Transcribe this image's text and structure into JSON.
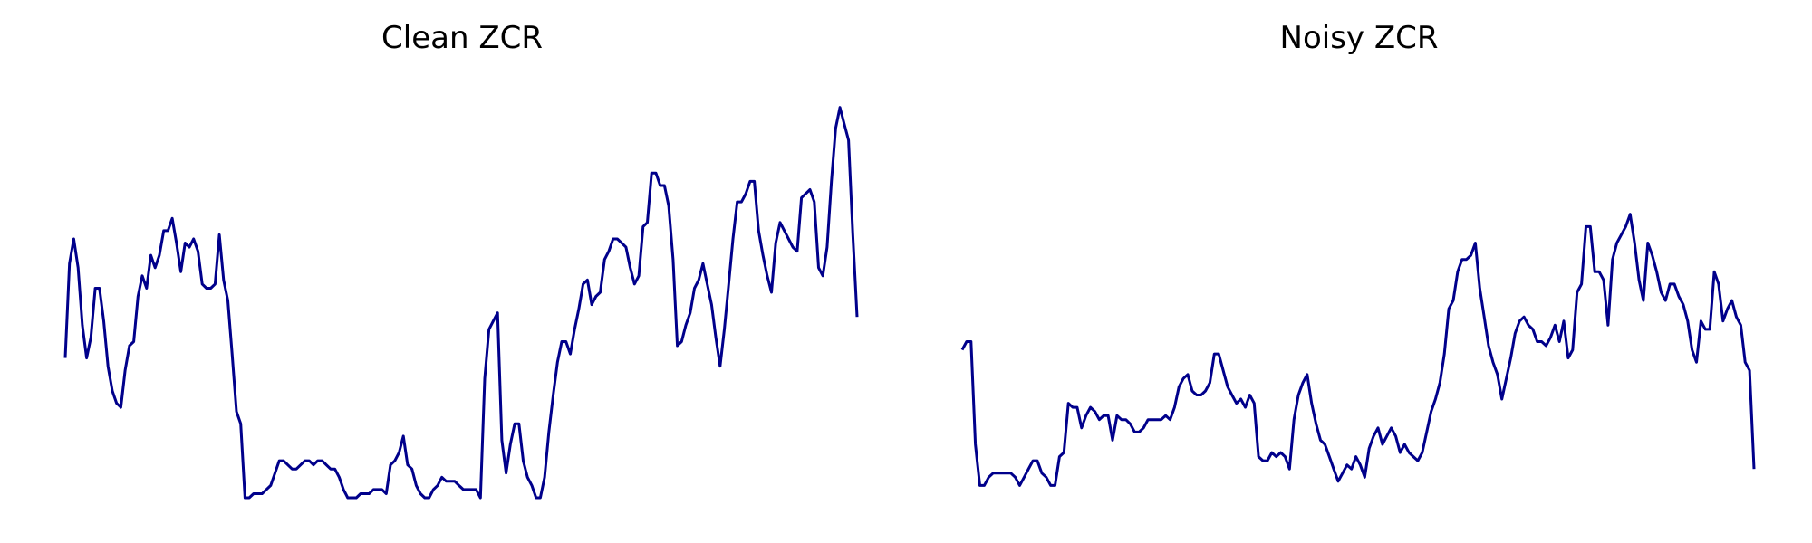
{
  "colors": {
    "line": "#00008b",
    "background": "#ffffff"
  },
  "chart_data": [
    {
      "type": "line",
      "title": "Clean ZCR",
      "axes_visible": false,
      "grid": false,
      "ylim": [
        0,
        1
      ],
      "y": [
        0.34,
        0.57,
        0.63,
        0.56,
        0.42,
        0.34,
        0.39,
        0.51,
        0.51,
        0.43,
        0.32,
        0.26,
        0.23,
        0.22,
        0.31,
        0.37,
        0.38,
        0.49,
        0.54,
        0.51,
        0.59,
        0.56,
        0.59,
        0.65,
        0.65,
        0.68,
        0.62,
        0.55,
        0.62,
        0.61,
        0.63,
        0.6,
        0.52,
        0.51,
        0.51,
        0.52,
        0.64,
        0.53,
        0.48,
        0.35,
        0.21,
        0.18,
        0.0,
        0.0,
        0.01,
        0.01,
        0.01,
        0.02,
        0.03,
        0.06,
        0.09,
        0.09,
        0.08,
        0.07,
        0.07,
        0.08,
        0.09,
        0.09,
        0.08,
        0.09,
        0.09,
        0.08,
        0.07,
        0.07,
        0.05,
        0.02,
        0.0,
        0.0,
        0.0,
        0.01,
        0.01,
        0.01,
        0.02,
        0.02,
        0.02,
        0.01,
        0.08,
        0.09,
        0.11,
        0.15,
        0.08,
        0.07,
        0.03,
        0.01,
        0.0,
        0.0,
        0.02,
        0.03,
        0.05,
        0.04,
        0.04,
        0.04,
        0.03,
        0.02,
        0.02,
        0.02,
        0.02,
        0.0,
        0.29,
        0.41,
        0.43,
        0.45,
        0.14,
        0.06,
        0.13,
        0.18,
        0.18,
        0.09,
        0.05,
        0.03,
        0.0,
        0.0,
        0.05,
        0.16,
        0.25,
        0.33,
        0.38,
        0.38,
        0.35,
        0.41,
        0.46,
        0.52,
        0.53,
        0.47,
        0.49,
        0.5,
        0.58,
        0.6,
        0.63,
        0.63,
        0.62,
        0.61,
        0.56,
        0.52,
        0.54,
        0.66,
        0.67,
        0.79,
        0.79,
        0.76,
        0.76,
        0.71,
        0.58,
        0.37,
        0.38,
        0.42,
        0.45,
        0.51,
        0.53,
        0.57,
        0.52,
        0.47,
        0.39,
        0.32,
        0.41,
        0.52,
        0.63,
        0.72,
        0.72,
        0.74,
        0.77,
        0.77,
        0.65,
        0.59,
        0.54,
        0.5,
        0.62,
        0.67,
        0.65,
        0.63,
        0.61,
        0.6,
        0.73,
        0.74,
        0.75,
        0.72,
        0.56,
        0.54,
        0.61,
        0.77,
        0.9,
        0.95,
        0.91,
        0.87,
        0.64,
        0.44
      ]
    },
    {
      "type": "line",
      "title": "Noisy ZCR",
      "axes_visible": false,
      "grid": false,
      "ylim": [
        0,
        1
      ],
      "y": [
        0.36,
        0.38,
        0.38,
        0.13,
        0.03,
        0.03,
        0.05,
        0.06,
        0.06,
        0.06,
        0.06,
        0.06,
        0.05,
        0.03,
        0.05,
        0.07,
        0.09,
        0.09,
        0.06,
        0.05,
        0.03,
        0.03,
        0.1,
        0.11,
        0.23,
        0.22,
        0.22,
        0.17,
        0.2,
        0.22,
        0.21,
        0.19,
        0.2,
        0.2,
        0.14,
        0.2,
        0.19,
        0.19,
        0.18,
        0.16,
        0.16,
        0.17,
        0.19,
        0.19,
        0.19,
        0.19,
        0.2,
        0.19,
        0.22,
        0.27,
        0.29,
        0.3,
        0.26,
        0.25,
        0.25,
        0.26,
        0.28,
        0.35,
        0.35,
        0.31,
        0.27,
        0.25,
        0.23,
        0.24,
        0.22,
        0.25,
        0.23,
        0.1,
        0.09,
        0.09,
        0.11,
        0.1,
        0.11,
        0.1,
        0.07,
        0.19,
        0.25,
        0.28,
        0.3,
        0.23,
        0.18,
        0.14,
        0.13,
        0.1,
        0.07,
        0.04,
        0.06,
        0.08,
        0.07,
        0.1,
        0.08,
        0.05,
        0.12,
        0.15,
        0.17,
        0.13,
        0.15,
        0.17,
        0.15,
        0.11,
        0.13,
        0.11,
        0.1,
        0.09,
        0.11,
        0.16,
        0.21,
        0.24,
        0.28,
        0.35,
        0.46,
        0.48,
        0.55,
        0.58,
        0.58,
        0.59,
        0.62,
        0.51,
        0.44,
        0.37,
        0.33,
        0.3,
        0.24,
        0.29,
        0.34,
        0.4,
        0.43,
        0.44,
        0.42,
        0.41,
        0.38,
        0.38,
        0.37,
        0.39,
        0.42,
        0.38,
        0.43,
        0.34,
        0.36,
        0.5,
        0.52,
        0.66,
        0.66,
        0.55,
        0.55,
        0.53,
        0.42,
        0.58,
        0.62,
        0.64,
        0.66,
        0.69,
        0.62,
        0.53,
        0.48,
        0.62,
        0.59,
        0.55,
        0.5,
        0.48,
        0.52,
        0.52,
        0.49,
        0.47,
        0.43,
        0.36,
        0.33,
        0.43,
        0.41,
        0.41,
        0.55,
        0.52,
        0.43,
        0.46,
        0.48,
        0.44,
        0.42,
        0.33,
        0.31,
        0.07
      ]
    }
  ]
}
